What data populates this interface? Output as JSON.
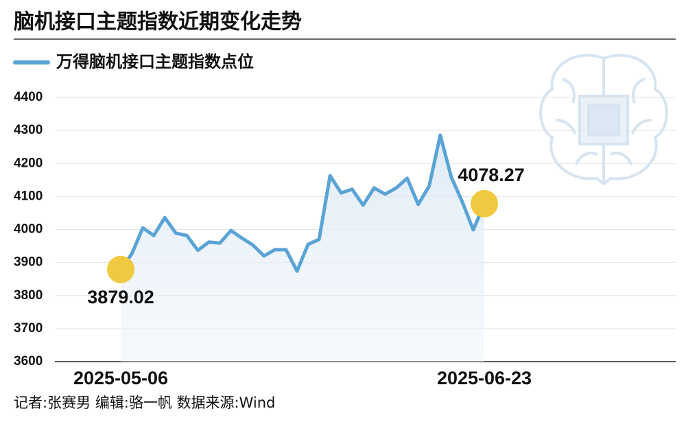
{
  "chart_data": {
    "type": "line",
    "title": "脑机接口主题指数近期变化走势",
    "categories": [
      "2025-05-06",
      null,
      null,
      null,
      null,
      null,
      null,
      null,
      null,
      null,
      null,
      null,
      null,
      null,
      null,
      null,
      null,
      null,
      null,
      null,
      null,
      null,
      null,
      null,
      null,
      null,
      null,
      null,
      null,
      null,
      null,
      null,
      null,
      "2025-06-23"
    ],
    "series": [
      {
        "name": "万得脑机接口主题指数点位",
        "color": "#5aa3d5",
        "values": [
          3879.02,
          3926,
          4005,
          3982,
          4036,
          3989,
          3982,
          3937,
          3962,
          3959,
          3997,
          3974,
          3953,
          3920,
          3939,
          3939,
          3874,
          3955,
          3970,
          4163,
          4111,
          4122,
          4074,
          4126,
          4107,
          4126,
          4155,
          4076,
          4132,
          4286,
          4159,
          4084,
          3999,
          4078.27
        ],
        "value_labels": [
          "3879.02",
          null,
          null,
          null,
          null,
          null,
          null,
          null,
          null,
          null,
          null,
          null,
          null,
          null,
          null,
          null,
          null,
          null,
          null,
          null,
          null,
          null,
          null,
          null,
          null,
          null,
          null,
          null,
          null,
          null,
          null,
          null,
          null,
          "4078.27"
        ]
      }
    ],
    "marker_color": "#efc93f",
    "ylim": [
      3600,
      4400
    ],
    "yticks": [
      3600,
      3700,
      3800,
      3900,
      4000,
      4100,
      4200,
      4300,
      4400
    ],
    "grid": true,
    "source": "记者:张赛男   编辑:骆一帆   数据来源:Wind"
  }
}
